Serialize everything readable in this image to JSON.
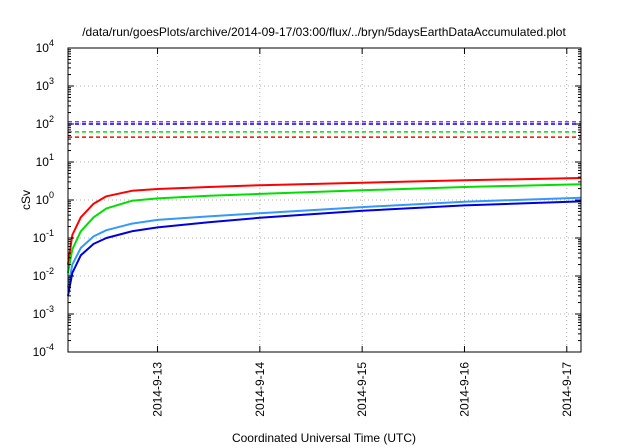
{
  "chart_data": {
    "type": "line",
    "title": "/data/run/goesPlots/archive/2014-09-17/03:00/flux/../bryn/5daysEarthDataAccumulated.plot",
    "xlabel": "Coordinated Universal Time (UTC)",
    "ylabel": "cSv",
    "y_scale": "log",
    "ylim": [
      0.0001,
      10000
    ],
    "y_ticks": [
      {
        "base": "10",
        "exp": "-4"
      },
      {
        "base": "10",
        "exp": "-3"
      },
      {
        "base": "10",
        "exp": "-2"
      },
      {
        "base": "10",
        "exp": "-1"
      },
      {
        "base": "10",
        "exp": "0"
      },
      {
        "base": "10",
        "exp": "1"
      },
      {
        "base": "10",
        "exp": "2"
      },
      {
        "base": "10",
        "exp": "3"
      },
      {
        "base": "10",
        "exp": "4"
      }
    ],
    "xlim": [
      "2014-09-12T03:00",
      "2014-09-17T03:20"
    ],
    "x_ticks": [
      "2014-9-13",
      "2014-9-14",
      "2014-9-15",
      "2014-9-16",
      "2014-9-17"
    ],
    "grid": true,
    "legend": "none",
    "series": [
      {
        "color": "#ff0000",
        "style": "solid",
        "x": [
          "2014-09-12T03:00",
          "2014-09-12T04:00",
          "2014-09-12T06:00",
          "2014-09-12T09:00",
          "2014-09-12T12:00",
          "2014-09-12T18:00",
          "2014-09-13T00:00",
          "2014-09-13T12:00",
          "2014-09-14T00:00",
          "2014-09-15T00:00",
          "2014-09-16T00:00",
          "2014-09-17T03:20"
        ],
        "y": [
          0.02,
          0.12,
          0.35,
          0.8,
          1.25,
          1.75,
          1.95,
          2.2,
          2.45,
          2.85,
          3.3,
          3.8
        ]
      },
      {
        "color": "#00e000",
        "style": "solid",
        "x": [
          "2014-09-12T03:00",
          "2014-09-12T04:00",
          "2014-09-12T06:00",
          "2014-09-12T09:00",
          "2014-09-12T12:00",
          "2014-09-12T18:00",
          "2014-09-13T00:00",
          "2014-09-13T12:00",
          "2014-09-14T00:00",
          "2014-09-15T00:00",
          "2014-09-16T00:00",
          "2014-09-17T03:20"
        ],
        "y": [
          0.012,
          0.05,
          0.15,
          0.35,
          0.6,
          0.95,
          1.1,
          1.3,
          1.45,
          1.8,
          2.2,
          2.6
        ]
      },
      {
        "color": "#3399ff",
        "style": "solid",
        "x": [
          "2014-09-12T03:00",
          "2014-09-12T04:00",
          "2014-09-12T06:00",
          "2014-09-12T09:00",
          "2014-09-12T12:00",
          "2014-09-12T18:00",
          "2014-09-13T00:00",
          "2014-09-13T12:00",
          "2014-09-14T00:00",
          "2014-09-15T00:00",
          "2014-09-16T00:00",
          "2014-09-17T03:20"
        ],
        "y": [
          0.005,
          0.02,
          0.055,
          0.11,
          0.16,
          0.24,
          0.3,
          0.37,
          0.45,
          0.65,
          0.9,
          1.15
        ]
      },
      {
        "color": "#0000e0",
        "style": "solid",
        "x": [
          "2014-09-12T03:00",
          "2014-09-12T04:00",
          "2014-09-12T06:00",
          "2014-09-12T09:00",
          "2014-09-12T12:00",
          "2014-09-12T18:00",
          "2014-09-13T00:00",
          "2014-09-13T12:00",
          "2014-09-14T00:00",
          "2014-09-15T00:00",
          "2014-09-16T00:00",
          "2014-09-17T03:20"
        ],
        "y": [
          0.003,
          0.012,
          0.035,
          0.07,
          0.1,
          0.15,
          0.19,
          0.26,
          0.34,
          0.52,
          0.72,
          0.92
        ]
      }
    ],
    "reference_lines": [
      {
        "color": "#9933ff",
        "style": "dashed",
        "y": 115
      },
      {
        "color": "#0000e0",
        "style": "dashed",
        "y": 100
      },
      {
        "color": "#00e000",
        "style": "dashed",
        "y": 62
      },
      {
        "color": "#ff0000",
        "style": "dashed",
        "y": 45
      }
    ]
  }
}
